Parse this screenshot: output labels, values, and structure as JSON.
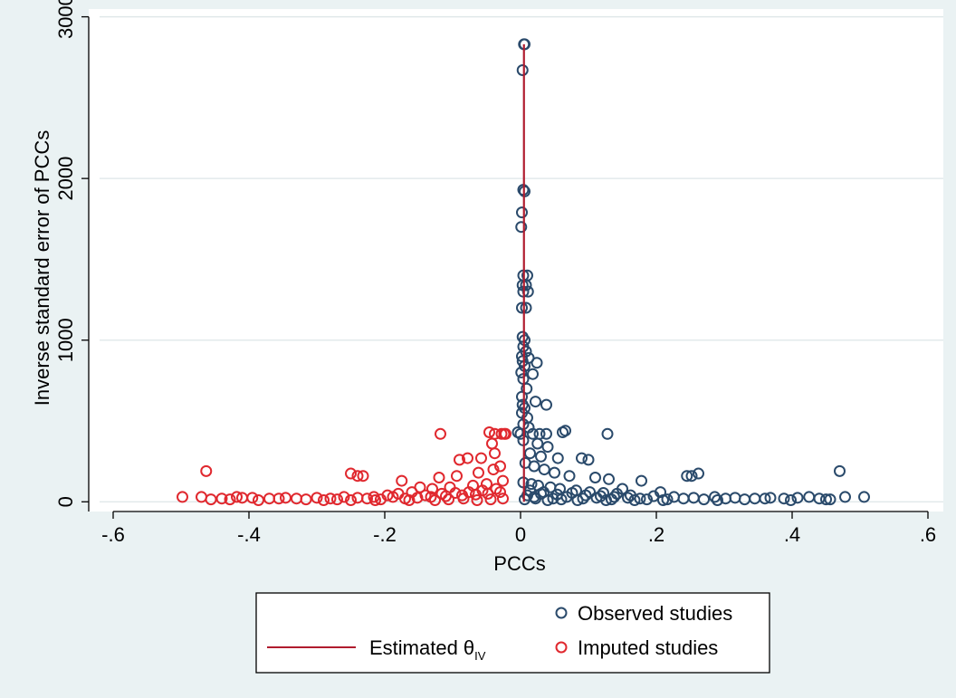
{
  "chart_data": {
    "type": "scatter",
    "xlabel": "PCCs",
    "ylabel": "Inverse standard error of PCCs",
    "xlim": [
      -0.62,
      0.62
    ],
    "ylim": [
      -60,
      3020
    ],
    "xticks": [
      -0.6,
      -0.4,
      -0.2,
      0,
      0.2,
      0.4,
      0.6
    ],
    "xtick_labels": [
      "-.6",
      "-.4",
      "-.2",
      "0",
      ".2",
      ".4",
      ".6"
    ],
    "yticks": [
      0,
      1000,
      2000,
      3000
    ],
    "ytick_labels": [
      "0",
      "1000",
      "2000",
      "3000"
    ],
    "grid": true,
    "legend_position": "bottom",
    "estimate_line": {
      "name": "Estimated θ",
      "subscript": "IV",
      "x": 0.005,
      "y_range": [
        0,
        2830
      ],
      "color": "#b01c2e"
    },
    "series": [
      {
        "name": "Observed studies",
        "color": "#2a4a6b",
        "points": [
          [
            0.005,
            2830
          ],
          [
            0.006,
            2830
          ],
          [
            0.003,
            2670
          ],
          [
            0.004,
            1930
          ],
          [
            0.006,
            1920
          ],
          [
            0.002,
            1790
          ],
          [
            0.001,
            1700
          ],
          [
            0.004,
            1400
          ],
          [
            0.01,
            1400
          ],
          [
            0.003,
            1340
          ],
          [
            0.008,
            1340
          ],
          [
            0.004,
            1300
          ],
          [
            0.011,
            1300
          ],
          [
            0.002,
            1200
          ],
          [
            0.008,
            1200
          ],
          [
            0.003,
            1020
          ],
          [
            0.006,
            1000
          ],
          [
            0.004,
            960
          ],
          [
            0.008,
            930
          ],
          [
            0.002,
            900
          ],
          [
            0.012,
            890
          ],
          [
            0.003,
            870
          ],
          [
            0.024,
            860
          ],
          [
            0.006,
            840
          ],
          [
            0.001,
            800
          ],
          [
            0.018,
            790
          ],
          [
            0.004,
            760
          ],
          [
            0.009,
            700
          ],
          [
            0.002,
            650
          ],
          [
            0.022,
            620
          ],
          [
            0.003,
            600
          ],
          [
            0.038,
            600
          ],
          [
            0.006,
            580
          ],
          [
            0.002,
            550
          ],
          [
            0.01,
            520
          ],
          [
            0.004,
            480
          ],
          [
            0.012,
            460
          ],
          [
            -0.004,
            430
          ],
          [
            0.0,
            420
          ],
          [
            0.018,
            420
          ],
          [
            0.028,
            420
          ],
          [
            0.038,
            420
          ],
          [
            0.062,
            430
          ],
          [
            0.066,
            440
          ],
          [
            0.128,
            420
          ],
          [
            0.004,
            380
          ],
          [
            0.025,
            360
          ],
          [
            0.04,
            340
          ],
          [
            0.014,
            300
          ],
          [
            0.03,
            280
          ],
          [
            0.055,
            270
          ],
          [
            0.09,
            270
          ],
          [
            0.1,
            260
          ],
          [
            0.007,
            240
          ],
          [
            0.02,
            220
          ],
          [
            0.035,
            200
          ],
          [
            0.05,
            180
          ],
          [
            0.072,
            160
          ],
          [
            0.11,
            150
          ],
          [
            0.13,
            140
          ],
          [
            0.178,
            130
          ],
          [
            0.245,
            160
          ],
          [
            0.252,
            160
          ],
          [
            0.262,
            175
          ],
          [
            0.47,
            190
          ],
          [
            0.004,
            120
          ],
          [
            0.016,
            110
          ],
          [
            0.026,
            100
          ],
          [
            0.044,
            90
          ],
          [
            0.058,
            80
          ],
          [
            0.082,
            70
          ],
          [
            0.102,
            60
          ],
          [
            0.122,
            55
          ],
          [
            0.142,
            50
          ],
          [
            0.15,
            80
          ],
          [
            0.162,
            40
          ],
          [
            0.196,
            35
          ],
          [
            0.206,
            60
          ],
          [
            0.226,
            30
          ],
          [
            0.255,
            25
          ],
          [
            0.286,
            30
          ],
          [
            0.302,
            20
          ],
          [
            0.316,
            25
          ],
          [
            0.345,
            20
          ],
          [
            0.368,
            25
          ],
          [
            0.388,
            20
          ],
          [
            0.408,
            25
          ],
          [
            0.425,
            30
          ],
          [
            0.44,
            20
          ],
          [
            0.456,
            15
          ],
          [
            0.478,
            30
          ],
          [
            0.506,
            30
          ],
          [
            0.01,
            40
          ],
          [
            0.02,
            30
          ],
          [
            0.03,
            50
          ],
          [
            0.048,
            20
          ],
          [
            0.068,
            30
          ],
          [
            0.092,
            20
          ],
          [
            0.112,
            25
          ],
          [
            0.134,
            15
          ],
          [
            0.176,
            20
          ],
          [
            0.216,
            15
          ],
          [
            0.24,
            20
          ],
          [
            0.27,
            15
          ],
          [
            0.29,
            10
          ],
          [
            0.33,
            15
          ],
          [
            0.36,
            20
          ],
          [
            0.398,
            10
          ],
          [
            0.45,
            15
          ],
          [
            0.014,
            70
          ],
          [
            0.034,
            60
          ],
          [
            0.054,
            45
          ],
          [
            0.076,
            55
          ],
          [
            0.096,
            40
          ],
          [
            0.118,
            35
          ],
          [
            0.138,
            30
          ],
          [
            0.158,
            25
          ],
          [
            0.186,
            15
          ],
          [
            0.006,
            15
          ],
          [
            0.022,
            20
          ],
          [
            0.04,
            10
          ],
          [
            0.06,
            15
          ],
          [
            0.084,
            10
          ],
          [
            0.126,
            10
          ],
          [
            0.168,
            10
          ],
          [
            0.21,
            10
          ]
        ]
      },
      {
        "name": "Imputed studies",
        "color": "#e0282e",
        "points": [
          [
            -0.046,
            430
          ],
          [
            -0.038,
            420
          ],
          [
            -0.028,
            420
          ],
          [
            -0.022,
            420
          ],
          [
            -0.024,
            420
          ],
          [
            -0.118,
            420
          ],
          [
            -0.042,
            360
          ],
          [
            -0.038,
            300
          ],
          [
            -0.058,
            270
          ],
          [
            -0.078,
            270
          ],
          [
            -0.09,
            260
          ],
          [
            -0.03,
            220
          ],
          [
            -0.04,
            200
          ],
          [
            -0.062,
            180
          ],
          [
            -0.094,
            160
          ],
          [
            -0.12,
            150
          ],
          [
            -0.175,
            130
          ],
          [
            -0.24,
            160
          ],
          [
            -0.25,
            175
          ],
          [
            -0.232,
            160
          ],
          [
            -0.463,
            190
          ],
          [
            -0.026,
            130
          ],
          [
            -0.05,
            110
          ],
          [
            -0.07,
            100
          ],
          [
            -0.104,
            90
          ],
          [
            -0.13,
            80
          ],
          [
            -0.148,
            90
          ],
          [
            -0.16,
            60
          ],
          [
            -0.18,
            50
          ],
          [
            -0.196,
            40
          ],
          [
            -0.216,
            30
          ],
          [
            -0.24,
            25
          ],
          [
            -0.26,
            30
          ],
          [
            -0.28,
            20
          ],
          [
            -0.3,
            25
          ],
          [
            -0.33,
            20
          ],
          [
            -0.346,
            25
          ],
          [
            -0.37,
            20
          ],
          [
            -0.395,
            25
          ],
          [
            -0.418,
            30
          ],
          [
            -0.44,
            20
          ],
          [
            -0.456,
            15
          ],
          [
            -0.47,
            30
          ],
          [
            -0.498,
            30
          ],
          [
            -0.03,
            60
          ],
          [
            -0.048,
            50
          ],
          [
            -0.066,
            45
          ],
          [
            -0.086,
            40
          ],
          [
            -0.11,
            35
          ],
          [
            -0.132,
            30
          ],
          [
            -0.152,
            25
          ],
          [
            -0.17,
            20
          ],
          [
            -0.206,
            15
          ],
          [
            -0.226,
            20
          ],
          [
            -0.27,
            15
          ],
          [
            -0.29,
            10
          ],
          [
            -0.316,
            15
          ],
          [
            -0.356,
            20
          ],
          [
            -0.386,
            10
          ],
          [
            -0.41,
            25
          ],
          [
            -0.428,
            15
          ],
          [
            -0.036,
            80
          ],
          [
            -0.056,
            70
          ],
          [
            -0.076,
            60
          ],
          [
            -0.096,
            55
          ],
          [
            -0.116,
            50
          ],
          [
            -0.14,
            40
          ],
          [
            -0.188,
            30
          ],
          [
            -0.25,
            10
          ],
          [
            -0.026,
            20
          ],
          [
            -0.044,
            15
          ],
          [
            -0.064,
            10
          ],
          [
            -0.084,
            20
          ],
          [
            -0.106,
            15
          ],
          [
            -0.126,
            10
          ],
          [
            -0.164,
            10
          ],
          [
            -0.214,
            10
          ]
        ]
      }
    ]
  }
}
